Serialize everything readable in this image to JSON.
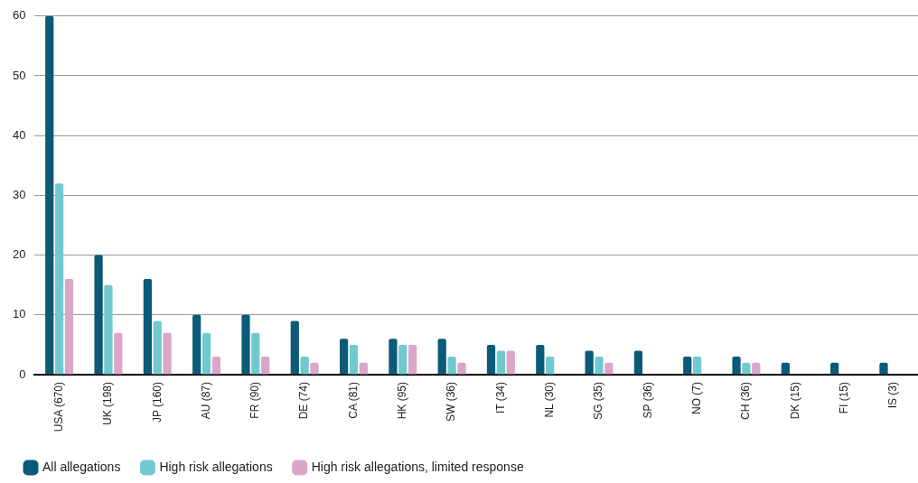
{
  "chart_data": {
    "type": "bar",
    "categories": [
      "USA (670)",
      "UK (198)",
      "JP (160)",
      "AU (87)",
      "FR (90)",
      "DE (74)",
      "CA (81)",
      "HK (95)",
      "SW (36)",
      "IT (34)",
      "NL (30)",
      "SG (35)",
      "SP (36)",
      "NO (7)",
      "CH (36)",
      "DK (15)",
      "FI (15)",
      "IS (3)"
    ],
    "series": [
      {
        "name": "All allegations",
        "color": "#0b5a78",
        "values": [
          60,
          20,
          16,
          10,
          10,
          9,
          6,
          6,
          6,
          5,
          5,
          4,
          4,
          3,
          3,
          2,
          2,
          2
        ]
      },
      {
        "name": "High risk allegations",
        "color": "#70c9cf",
        "values": [
          32,
          15,
          9,
          7,
          7,
          3,
          5,
          5,
          3,
          4,
          3,
          3,
          0,
          3,
          2,
          0,
          0,
          0
        ]
      },
      {
        "name": "High risk allegations, limited response",
        "color": "#dba5c9",
        "values": [
          16,
          7,
          7,
          3,
          3,
          2,
          2,
          5,
          2,
          4,
          0,
          2,
          0,
          0,
          2,
          0,
          0,
          0
        ]
      }
    ],
    "ylim": [
      0,
      60
    ],
    "yticks": [
      0,
      10,
      20,
      30,
      40,
      50,
      60
    ],
    "grid": "y",
    "legend": "bottom"
  }
}
